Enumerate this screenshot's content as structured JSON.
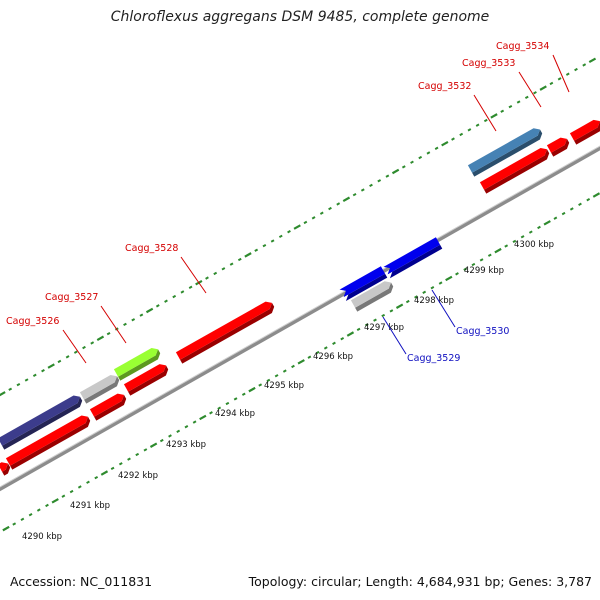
{
  "title": "Chloroflexus aggregans DSM 9485, complete genome",
  "footer": {
    "accession": "Accession: NC_011831",
    "summary": "Topology: circular; Length: 4,684,931 bp; Genes: 3,787"
  },
  "colors": {
    "tick": "#2e8b2e",
    "backbone": "#8c8c8c",
    "red_gene": "#ff0000",
    "label_forward": "#d40000",
    "label_reverse": "#1010c0",
    "blue_gene": "#0000ee",
    "steel_blue_gene": "#4682b4",
    "navy_gene": "#3c3c8c",
    "gray_gene": "#c8c8c8",
    "lime_gene": "#99ff33"
  },
  "scale": {
    "unit": "kbp",
    "labels": [
      "4290 kbp",
      "4291 kbp",
      "4292 kbp",
      "4293 kbp",
      "4294 kbp",
      "4295 kbp",
      "4296 kbp",
      "4297 kbp",
      "4298 kbp",
      "4299 kbp",
      "4300 kbp"
    ]
  },
  "gene_labels": {
    "forward": [
      "Cagg_3526",
      "Cagg_3527",
      "Cagg_3528",
      "Cagg_3532",
      "Cagg_3533",
      "Cagg_3534"
    ],
    "reverse": [
      "Cagg_3529",
      "Cagg_3530"
    ]
  }
}
